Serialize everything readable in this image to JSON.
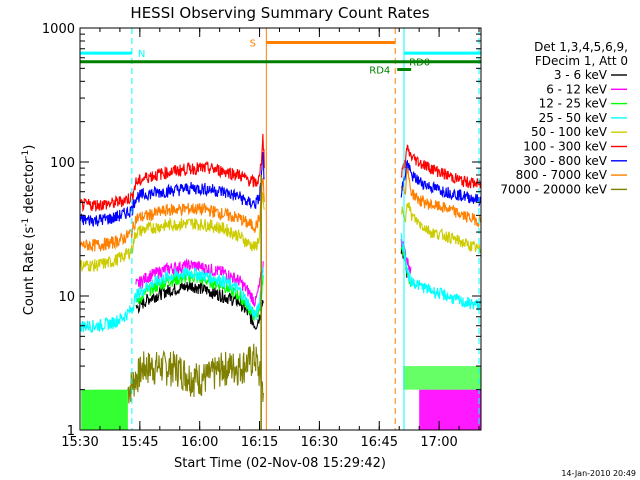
{
  "chart_data": {
    "type": "line",
    "title": "HESSI Observing Summary Count Rates",
    "xlabel": "Start Time (02-Nov-08 15:29:42)",
    "ylabel_main": "Count Rate (s",
    "ylabel_sup1": "-1",
    "ylabel_mid": " detector",
    "ylabel_sup2": "-1",
    "ylabel_end": ")",
    "footer": "14-Jan-2010 20:49",
    "x_range_minutes": [
      0,
      100.5
    ],
    "y_log_range": [
      1,
      1000
    ],
    "x_ticks": [
      {
        "label": "15:30",
        "min": 0
      },
      {
        "label": "15:45",
        "min": 15
      },
      {
        "label": "16:00",
        "min": 30
      },
      {
        "label": "16:15",
        "min": 45
      },
      {
        "label": "16:30",
        "min": 60
      },
      {
        "label": "16:45",
        "min": 75
      },
      {
        "label": "17:00",
        "min": 90
      }
    ],
    "y_ticks": [
      {
        "label": "1",
        "value": 1
      },
      {
        "label": "10",
        "value": 10
      },
      {
        "label": "100",
        "value": 100
      },
      {
        "label": "1000",
        "value": 1000
      }
    ],
    "legend_header": [
      "Det 1,3,4,5,6,9,",
      "FDecim 1, Att 0"
    ],
    "series": [
      {
        "name": "3 - 6 keV",
        "color": "#000000"
      },
      {
        "name": "6 - 12 keV",
        "color": "#ff00ff"
      },
      {
        "name": "12 - 25 keV",
        "color": "#00ff00"
      },
      {
        "name": "25 - 50 keV",
        "color": "#00ffff"
      },
      {
        "name": "50 - 100 keV",
        "color": "#cccc00"
      },
      {
        "name": "100 - 300 keV",
        "color": "#ff0000"
      },
      {
        "name": "300 - 800 keV",
        "color": "#0000ff"
      },
      {
        "name": "800 - 7000 keV",
        "color": "#ff8000"
      },
      {
        "name": "7000 - 20000 keV",
        "color": "#808000"
      }
    ],
    "flag_labels": {
      "night": "N",
      "saa": "S",
      "rd0": "RD0",
      "rd4": "RD4"
    },
    "curve_points": {
      "red": [
        [
          0,
          48
        ],
        [
          4,
          48
        ],
        [
          8,
          49
        ],
        [
          11,
          52
        ],
        [
          13,
          55
        ],
        [
          14,
          70
        ],
        [
          17,
          78
        ],
        [
          22,
          84
        ],
        [
          28,
          90
        ],
        [
          32,
          90
        ],
        [
          36,
          86
        ],
        [
          40,
          80
        ],
        [
          42,
          74
        ],
        [
          44,
          70
        ],
        [
          45,
          75
        ],
        [
          45.5,
          110
        ],
        [
          45.8,
          160
        ],
        [
          46.2,
          100
        ]
      ],
      "blue": [
        [
          0,
          37
        ],
        [
          4,
          37
        ],
        [
          8,
          38
        ],
        [
          11,
          41
        ],
        [
          13,
          44
        ],
        [
          14,
          55
        ],
        [
          17,
          58
        ],
        [
          22,
          61
        ],
        [
          28,
          64
        ],
        [
          32,
          63
        ],
        [
          36,
          60
        ],
        [
          40,
          55
        ],
        [
          42,
          50
        ],
        [
          44,
          49
        ],
        [
          45,
          55
        ],
        [
          45.5,
          80
        ],
        [
          45.8,
          120
        ],
        [
          46.2,
          70
        ]
      ],
      "orange": [
        [
          0,
          24
        ],
        [
          4,
          24
        ],
        [
          8,
          25
        ],
        [
          11,
          27
        ],
        [
          13,
          30
        ],
        [
          14,
          38
        ],
        [
          17,
          40
        ],
        [
          22,
          44
        ],
        [
          28,
          45
        ],
        [
          32,
          44
        ],
        [
          36,
          41
        ],
        [
          40,
          38
        ],
        [
          42,
          35
        ],
        [
          44,
          33
        ],
        [
          45,
          38
        ],
        [
          45.5,
          55
        ],
        [
          45.8,
          80
        ],
        [
          46.2,
          50
        ]
      ],
      "yellow": [
        [
          0,
          17
        ],
        [
          4,
          17
        ],
        [
          8,
          18
        ],
        [
          11,
          20
        ],
        [
          13,
          22
        ],
        [
          14,
          30
        ],
        [
          17,
          32
        ],
        [
          22,
          34
        ],
        [
          28,
          35
        ],
        [
          32,
          34
        ],
        [
          36,
          32
        ],
        [
          40,
          28
        ],
        [
          42,
          25
        ],
        [
          44,
          23
        ],
        [
          45,
          28
        ],
        [
          45.5,
          45
        ],
        [
          45.8,
          60
        ],
        [
          46.2,
          40
        ]
      ],
      "magenta": [
        [
          14,
          12
        ],
        [
          17,
          14
        ],
        [
          22,
          16
        ],
        [
          28,
          17
        ],
        [
          32,
          16
        ],
        [
          36,
          15
        ],
        [
          40,
          13
        ],
        [
          42,
          11
        ],
        [
          44,
          9
        ],
        [
          45,
          12
        ],
        [
          46,
          18
        ]
      ],
      "cyan": [
        [
          0,
          6
        ],
        [
          4,
          6
        ],
        [
          8,
          6.3
        ],
        [
          11,
          7
        ],
        [
          13,
          8
        ],
        [
          14,
          10
        ],
        [
          17,
          12
        ],
        [
          22,
          14
        ],
        [
          28,
          15
        ],
        [
          32,
          14
        ],
        [
          36,
          13
        ],
        [
          40,
          11
        ],
        [
          42,
          9
        ],
        [
          44,
          7
        ],
        [
          45,
          9
        ],
        [
          46,
          18
        ]
      ],
      "green": [
        [
          14,
          9
        ],
        [
          17,
          11
        ],
        [
          22,
          13
        ],
        [
          28,
          14
        ],
        [
          32,
          13
        ],
        [
          36,
          12
        ],
        [
          40,
          10
        ],
        [
          42,
          8.5
        ],
        [
          44,
          7
        ],
        [
          45,
          8
        ],
        [
          46,
          14
        ]
      ],
      "black": [
        [
          14,
          8
        ],
        [
          17,
          9.5
        ],
        [
          22,
          11
        ],
        [
          28,
          12
        ],
        [
          32,
          11
        ],
        [
          36,
          10
        ],
        [
          40,
          9
        ],
        [
          42,
          7.5
        ],
        [
          44,
          6
        ],
        [
          45,
          7
        ],
        [
          46,
          10
        ]
      ],
      "olive": [
        [
          12,
          2
        ],
        [
          14,
          2.5
        ],
        [
          16,
          3
        ],
        [
          20,
          3
        ],
        [
          24,
          3
        ],
        [
          28,
          2.5
        ],
        [
          32,
          2.5
        ],
        [
          36,
          3
        ],
        [
          40,
          3
        ],
        [
          44,
          3.5
        ],
        [
          46,
          2
        ]
      ],
      "red_r": [
        [
          80.5,
          80
        ],
        [
          81.5,
          100
        ],
        [
          82,
          125
        ],
        [
          83,
          110
        ],
        [
          85,
          100
        ],
        [
          88,
          90
        ],
        [
          92,
          80
        ],
        [
          96,
          72
        ],
        [
          100.5,
          68
        ]
      ],
      "blue_r": [
        [
          80.5,
          60
        ],
        [
          81.5,
          80
        ],
        [
          82,
          100
        ],
        [
          83,
          80
        ],
        [
          85,
          72
        ],
        [
          88,
          65
        ],
        [
          92,
          60
        ],
        [
          96,
          56
        ],
        [
          100.5,
          52
        ]
      ],
      "orange_r": [
        [
          80.5,
          70
        ],
        [
          81.5,
          60
        ],
        [
          82,
          90
        ],
        [
          83,
          60
        ],
        [
          85,
          52
        ],
        [
          88,
          48
        ],
        [
          92,
          45
        ],
        [
          96,
          40
        ],
        [
          100.5,
          36
        ]
      ],
      "yellow_r": [
        [
          80.5,
          45
        ],
        [
          81.5,
          35
        ],
        [
          82,
          55
        ],
        [
          83,
          40
        ],
        [
          85,
          35
        ],
        [
          88,
          30
        ],
        [
          92,
          28
        ],
        [
          96,
          25
        ],
        [
          100.5,
          22
        ]
      ],
      "cyan_r": [
        [
          80.5,
          28
        ],
        [
          81.5,
          20
        ],
        [
          82,
          15
        ],
        [
          83,
          13
        ],
        [
          85,
          12
        ],
        [
          88,
          11
        ],
        [
          92,
          10
        ],
        [
          96,
          9
        ],
        [
          100.5,
          8.5
        ]
      ],
      "magenta_r": [
        [
          80.5,
          25
        ],
        [
          81.5,
          22
        ],
        [
          82,
          18
        ],
        [
          83,
          15
        ]
      ],
      "green_r": [
        [
          80.5,
          23
        ],
        [
          81.5,
          20
        ],
        [
          82,
          15
        ],
        [
          83,
          12
        ]
      ],
      "black_r": [
        [
          80.5,
          22
        ],
        [
          81.5,
          19
        ],
        [
          82,
          14
        ]
      ]
    }
  }
}
